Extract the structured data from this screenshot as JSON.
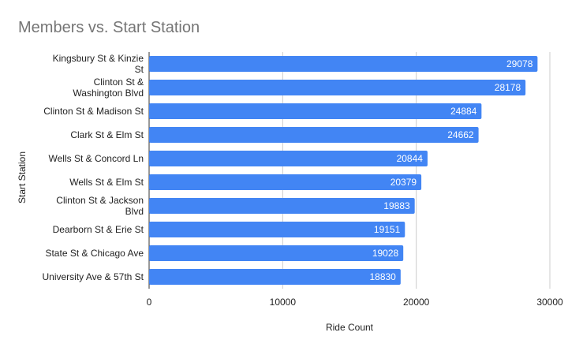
{
  "chart_data": {
    "type": "bar",
    "orientation": "horizontal",
    "title": "Members vs. Start Station",
    "xlabel": "Ride Count",
    "ylabel": "Start Station",
    "xlim": [
      0,
      30000
    ],
    "xticks": [
      "0",
      "10000",
      "20000",
      "30000"
    ],
    "categories": [
      [
        "Kingsbury St & Kinzie",
        "St"
      ],
      [
        "Clinton St &",
        "Washington Blvd"
      ],
      [
        "Clinton St & Madison St"
      ],
      [
        "Clark St & Elm St"
      ],
      [
        "Wells St & Concord Ln"
      ],
      [
        "Wells St & Elm St"
      ],
      [
        "Clinton St & Jackson",
        "Blvd"
      ],
      [
        "Dearborn St & Erie St"
      ],
      [
        "State St & Chicago Ave"
      ],
      [
        "University Ave & 57th St"
      ]
    ],
    "values": [
      29078,
      28178,
      24884,
      24662,
      20844,
      20379,
      19883,
      19151,
      19028,
      18830
    ],
    "data_labels": [
      "29078",
      "28178",
      "24884",
      "24662",
      "20844",
      "20379",
      "19883",
      "19151",
      "19028",
      "18830"
    ],
    "bar_color": "#4285f4",
    "grid": true,
    "legend": "none"
  }
}
